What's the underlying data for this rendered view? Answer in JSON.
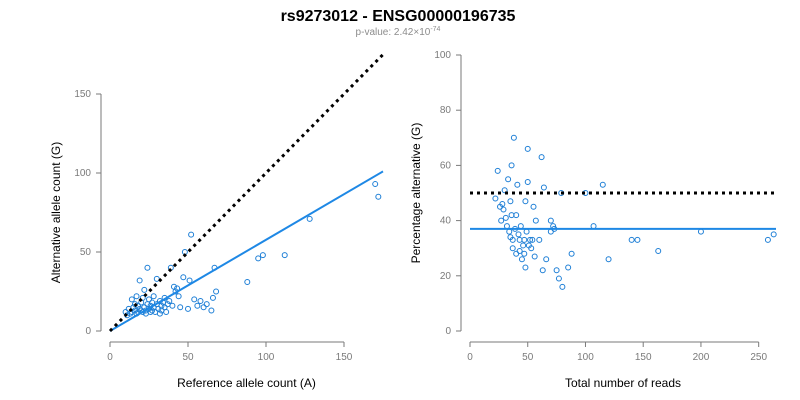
{
  "header": {
    "title": "rs9273012 - ENSG00000196735",
    "pvalue_prefix": "p-value: 2.42×10",
    "pvalue_exponent": "-74"
  },
  "colors": {
    "points": "#1e7fd6",
    "fit": "#1e88e5",
    "reference": "#000000",
    "axis": "#7a7a7a"
  },
  "chart_data": [
    {
      "type": "scatter",
      "xlabel": "Reference allele count (A)",
      "ylabel": "Alternative allele count (G)",
      "xlim": [
        0,
        175
      ],
      "ylim": [
        0,
        150
      ],
      "xticks": [
        0,
        50,
        100,
        150
      ],
      "yticks": [
        0,
        50,
        100,
        150
      ],
      "grid": false,
      "points": [
        [
          10,
          12
        ],
        [
          11,
          10
        ],
        [
          12,
          14
        ],
        [
          13,
          11
        ],
        [
          14,
          20
        ],
        [
          14,
          12
        ],
        [
          15,
          15
        ],
        [
          16,
          13
        ],
        [
          16,
          17
        ],
        [
          17,
          11
        ],
        [
          17,
          22
        ],
        [
          18,
          12
        ],
        [
          18,
          16
        ],
        [
          19,
          14
        ],
        [
          19,
          32
        ],
        [
          20,
          18
        ],
        [
          20,
          13
        ],
        [
          21,
          12
        ],
        [
          21,
          21
        ],
        [
          22,
          15
        ],
        [
          22,
          26
        ],
        [
          23,
          11
        ],
        [
          23,
          13
        ],
        [
          24,
          40
        ],
        [
          24,
          17
        ],
        [
          25,
          14
        ],
        [
          25,
          20
        ],
        [
          26,
          12
        ],
        [
          26,
          16
        ],
        [
          27,
          18
        ],
        [
          27,
          13
        ],
        [
          28,
          22
        ],
        [
          28,
          15
        ],
        [
          29,
          12
        ],
        [
          30,
          17
        ],
        [
          30,
          33
        ],
        [
          31,
          14
        ],
        [
          32,
          11
        ],
        [
          32,
          19
        ],
        [
          33,
          16
        ],
        [
          33,
          13
        ],
        [
          34,
          18
        ],
        [
          35,
          15
        ],
        [
          35,
          21
        ],
        [
          36,
          12
        ],
        [
          37,
          17
        ],
        [
          38,
          19
        ],
        [
          39,
          40
        ],
        [
          40,
          16
        ],
        [
          41,
          28
        ],
        [
          42,
          25
        ],
        [
          43,
          27
        ],
        [
          44,
          22
        ],
        [
          45,
          15
        ],
        [
          47,
          34
        ],
        [
          48,
          50
        ],
        [
          50,
          14
        ],
        [
          51,
          32
        ],
        [
          52,
          61
        ],
        [
          54,
          20
        ],
        [
          56,
          16
        ],
        [
          58,
          19
        ],
        [
          60,
          15
        ],
        [
          62,
          17
        ],
        [
          65,
          13
        ],
        [
          66,
          21
        ],
        [
          67,
          40
        ],
        [
          68,
          25
        ],
        [
          88,
          31
        ],
        [
          95,
          46
        ],
        [
          98,
          48
        ],
        [
          112,
          48
        ],
        [
          128,
          71
        ],
        [
          170,
          93
        ],
        [
          172,
          85
        ]
      ],
      "series": [
        {
          "name": "",
          "kind": "fit",
          "x": [
            0,
            175
          ],
          "y": [
            0,
            101
          ]
        },
        {
          "name": "",
          "kind": "reference",
          "x": [
            0,
            175
          ],
          "y": [
            0,
            175
          ]
        }
      ]
    },
    {
      "type": "scatter",
      "xlabel": "Total number of reads",
      "ylabel": "Percentage alternative (G)",
      "xlim": [
        0,
        265
      ],
      "ylim": [
        0,
        100
      ],
      "xticks": [
        0,
        50,
        100,
        150,
        200,
        250
      ],
      "yticks": [
        0,
        20,
        40,
        60,
        80,
        100
      ],
      "grid": false,
      "points": [
        [
          22,
          48
        ],
        [
          24,
          58
        ],
        [
          26,
          45
        ],
        [
          27,
          40
        ],
        [
          28,
          46
        ],
        [
          29,
          44
        ],
        [
          30,
          51
        ],
        [
          31,
          41
        ],
        [
          32,
          38
        ],
        [
          33,
          55
        ],
        [
          34,
          36
        ],
        [
          35,
          47
        ],
        [
          35,
          34
        ],
        [
          36,
          42
        ],
        [
          36,
          60
        ],
        [
          37,
          33
        ],
        [
          37,
          30
        ],
        [
          38,
          70
        ],
        [
          39,
          37
        ],
        [
          40,
          42
        ],
        [
          40,
          28
        ],
        [
          41,
          53
        ],
        [
          42,
          35
        ],
        [
          43,
          33
        ],
        [
          43,
          29
        ],
        [
          44,
          38
        ],
        [
          45,
          26
        ],
        [
          46,
          31
        ],
        [
          47,
          33
        ],
        [
          47,
          28
        ],
        [
          48,
          47
        ],
        [
          48,
          23
        ],
        [
          49,
          36
        ],
        [
          50,
          66
        ],
        [
          50,
          54
        ],
        [
          51,
          31
        ],
        [
          52,
          33
        ],
        [
          53,
          30
        ],
        [
          54,
          33
        ],
        [
          55,
          45
        ],
        [
          56,
          27
        ],
        [
          57,
          40
        ],
        [
          60,
          33
        ],
        [
          62,
          63
        ],
        [
          63,
          22
        ],
        [
          64,
          52
        ],
        [
          66,
          26
        ],
        [
          70,
          40
        ],
        [
          70,
          36
        ],
        [
          72,
          38
        ],
        [
          73,
          37
        ],
        [
          75,
          22
        ],
        [
          77,
          19
        ],
        [
          79,
          50
        ],
        [
          80,
          16
        ],
        [
          85,
          23
        ],
        [
          88,
          28
        ],
        [
          100,
          50
        ],
        [
          107,
          38
        ],
        [
          115,
          53
        ],
        [
          120,
          26
        ],
        [
          140,
          33
        ],
        [
          145,
          33
        ],
        [
          163,
          29
        ],
        [
          200,
          36
        ],
        [
          258,
          33
        ],
        [
          263,
          35
        ]
      ],
      "series": [
        {
          "name": "",
          "kind": "fit",
          "x": [
            0,
            265
          ],
          "y": [
            37,
            37
          ]
        },
        {
          "name": "",
          "kind": "reference",
          "x": [
            0,
            265
          ],
          "y": [
            50,
            50
          ]
        }
      ]
    }
  ]
}
